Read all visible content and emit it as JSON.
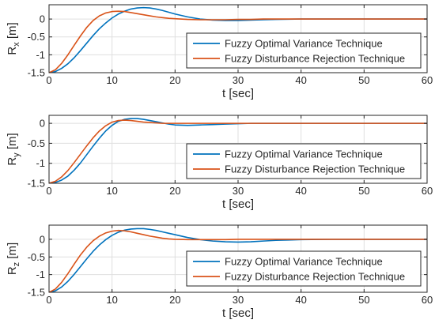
{
  "chart_data": [
    {
      "type": "line",
      "xlabel": "t [sec]",
      "ylabel": "R",
      "ylabel_sub": "x",
      "ylabel_unit": "[m]",
      "xlim": [
        0,
        60
      ],
      "ylim": [
        -1.5,
        0.4
      ],
      "xticks": [
        "0",
        "10",
        "20",
        "30",
        "40",
        "50",
        "60"
      ],
      "yticks": [
        "-1.5",
        "-1",
        "-0.5",
        "0"
      ],
      "grid": true,
      "legend_position": "lower-right",
      "x": [
        0,
        1,
        2,
        3,
        4,
        5,
        6,
        7,
        8,
        9,
        10,
        11,
        12,
        13,
        14,
        15,
        16,
        17,
        18,
        19,
        20,
        22,
        24,
        26,
        28,
        30,
        32,
        34,
        36,
        38,
        40,
        45,
        50,
        55,
        60
      ],
      "series": [
        {
          "name": "Fuzzy Optimal Variance Technique",
          "color": "#0072bd",
          "values": [
            -1.5,
            -1.47,
            -1.38,
            -1.25,
            -1.08,
            -0.88,
            -0.67,
            -0.46,
            -0.27,
            -0.11,
            0.03,
            0.14,
            0.22,
            0.28,
            0.31,
            0.32,
            0.31,
            0.28,
            0.24,
            0.19,
            0.14,
            0.06,
            0.0,
            -0.03,
            -0.04,
            -0.04,
            -0.03,
            -0.02,
            -0.01,
            -0.005,
            0.0,
            0.0,
            0.0,
            0.0,
            0.0
          ]
        },
        {
          "name": "Fuzzy Disturbance Rejection Technique",
          "color": "#d95319",
          "values": [
            -1.5,
            -1.42,
            -1.24,
            -1.0,
            -0.73,
            -0.47,
            -0.23,
            -0.04,
            0.09,
            0.17,
            0.21,
            0.22,
            0.21,
            0.18,
            0.15,
            0.12,
            0.09,
            0.06,
            0.04,
            0.02,
            0.01,
            -0.01,
            -0.02,
            -0.02,
            -0.02,
            -0.01,
            -0.01,
            0.0,
            0.0,
            0.0,
            0.0,
            0.0,
            0.0,
            0.0,
            0.0
          ]
        }
      ]
    },
    {
      "type": "line",
      "xlabel": "t [sec]",
      "ylabel": "R",
      "ylabel_sub": "y",
      "ylabel_unit": "[m]",
      "xlim": [
        0,
        60
      ],
      "ylim": [
        -1.5,
        0.2
      ],
      "xticks": [
        "0",
        "10",
        "20",
        "30",
        "40",
        "50",
        "60"
      ],
      "yticks": [
        "-1.5",
        "-1",
        "-0.5",
        "0"
      ],
      "grid": true,
      "legend_position": "lower-right",
      "x": [
        0,
        1,
        2,
        3,
        4,
        5,
        6,
        7,
        8,
        9,
        10,
        11,
        12,
        13,
        14,
        15,
        16,
        17,
        18,
        19,
        20,
        22,
        24,
        26,
        28,
        30,
        32,
        34,
        36,
        38,
        40,
        45,
        50,
        55,
        60
      ],
      "series": [
        {
          "name": "Fuzzy Optimal Variance Technique",
          "color": "#0072bd",
          "values": [
            -1.5,
            -1.48,
            -1.42,
            -1.32,
            -1.17,
            -0.99,
            -0.78,
            -0.57,
            -0.37,
            -0.19,
            -0.05,
            0.05,
            0.1,
            0.12,
            0.12,
            0.1,
            0.07,
            0.04,
            0.01,
            -0.02,
            -0.04,
            -0.05,
            -0.04,
            -0.03,
            -0.02,
            -0.01,
            0.0,
            0.0,
            0.0,
            0.0,
            0.0,
            0.0,
            0.0,
            0.0,
            0.0
          ]
        },
        {
          "name": "Fuzzy Disturbance Rejection Technique",
          "color": "#d95319",
          "values": [
            -1.5,
            -1.45,
            -1.34,
            -1.18,
            -0.98,
            -0.77,
            -0.56,
            -0.36,
            -0.19,
            -0.06,
            0.03,
            0.07,
            0.08,
            0.07,
            0.05,
            0.03,
            0.02,
            0.01,
            0.0,
            0.0,
            0.0,
            0.0,
            0.0,
            0.0,
            0.0,
            0.0,
            0.0,
            0.0,
            0.0,
            0.0,
            0.0,
            0.0,
            0.0,
            0.0,
            0.0
          ]
        }
      ]
    },
    {
      "type": "line",
      "xlabel": "t [sec]",
      "ylabel": "R",
      "ylabel_sub": "z",
      "ylabel_unit": "[m]",
      "xlim": [
        0,
        60
      ],
      "ylim": [
        -1.5,
        0.4
      ],
      "xticks": [
        "0",
        "10",
        "20",
        "30",
        "40",
        "50",
        "60"
      ],
      "yticks": [
        "-1.5",
        "-1",
        "-0.5",
        "0"
      ],
      "grid": true,
      "legend_position": "lower-right",
      "x": [
        0,
        1,
        2,
        3,
        4,
        5,
        6,
        7,
        8,
        9,
        10,
        11,
        12,
        13,
        14,
        15,
        16,
        17,
        18,
        19,
        20,
        22,
        24,
        26,
        28,
        30,
        32,
        34,
        36,
        38,
        40,
        45,
        50,
        55,
        60
      ],
      "series": [
        {
          "name": "Fuzzy Optimal Variance Technique",
          "color": "#0072bd",
          "values": [
            -1.5,
            -1.46,
            -1.35,
            -1.19,
            -0.99,
            -0.77,
            -0.55,
            -0.34,
            -0.16,
            -0.01,
            0.11,
            0.2,
            0.26,
            0.29,
            0.3,
            0.3,
            0.28,
            0.25,
            0.21,
            0.17,
            0.13,
            0.05,
            -0.01,
            -0.05,
            -0.07,
            -0.08,
            -0.07,
            -0.05,
            -0.03,
            -0.02,
            -0.01,
            0.0,
            0.0,
            0.0,
            0.0
          ]
        },
        {
          "name": "Fuzzy Disturbance Rejection Technique",
          "color": "#d95319",
          "values": [
            -1.5,
            -1.41,
            -1.22,
            -0.97,
            -0.7,
            -0.44,
            -0.22,
            -0.04,
            0.09,
            0.18,
            0.23,
            0.25,
            0.24,
            0.21,
            0.17,
            0.13,
            0.09,
            0.06,
            0.03,
            0.01,
            0.0,
            -0.01,
            -0.01,
            -0.01,
            -0.01,
            0.0,
            0.0,
            0.0,
            0.0,
            0.0,
            0.0,
            0.0,
            0.0,
            0.0,
            0.0
          ]
        }
      ]
    }
  ],
  "colors": {
    "axis": "#262626",
    "grid": "#dfdfdf",
    "legend_border": "#262626"
  }
}
